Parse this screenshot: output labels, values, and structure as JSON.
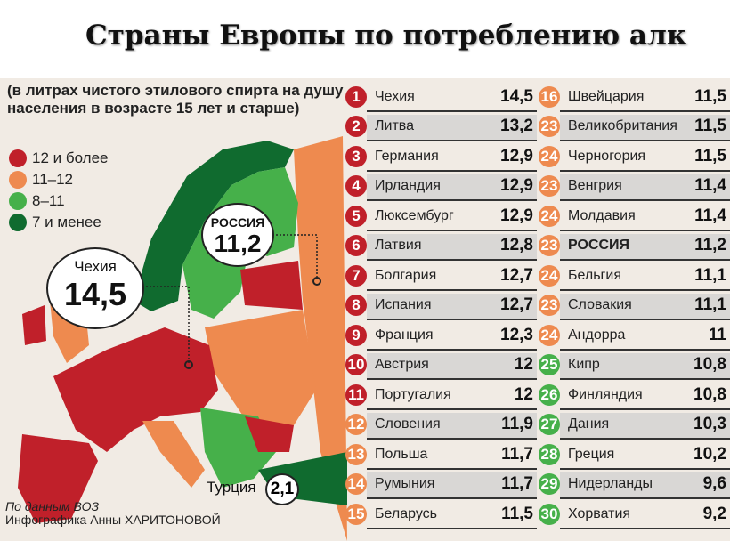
{
  "title": "Страны Европы по потреблению алк",
  "subtitle": "(в литрах чистого этилового спирта на душу населения в возрасте 15 лет и старше)",
  "legend": [
    {
      "label": "12 и более",
      "color": "#c0202a"
    },
    {
      "label": "11–12",
      "color": "#ee8a4f"
    },
    {
      "label": "8–11",
      "color": "#46b04a"
    },
    {
      "label": "7 и менее",
      "color": "#106b2f"
    }
  ],
  "callouts": {
    "czech": {
      "name": "Чехия",
      "value": "14,5"
    },
    "russia": {
      "name": "РОССИЯ",
      "value": "11,2"
    },
    "turkey": {
      "name": "Турция",
      "value": "2,1"
    }
  },
  "source": {
    "line1": "По данным ВОЗ",
    "line2": "Инфографика Анны ХАРИТОНОВОЙ"
  },
  "ranking": [
    {
      "rank": "1",
      "country": "Чехия",
      "value": "14,5",
      "color": "#c0202a"
    },
    {
      "rank": "2",
      "country": "Литва",
      "value": "13,2",
      "color": "#c0202a"
    },
    {
      "rank": "3",
      "country": "Германия",
      "value": "12,9",
      "color": "#c0202a"
    },
    {
      "rank": "4",
      "country": "Ирландия",
      "value": "12,9",
      "color": "#c0202a"
    },
    {
      "rank": "5",
      "country": "Люксембург",
      "value": "12,9",
      "color": "#c0202a"
    },
    {
      "rank": "6",
      "country": "Латвия",
      "value": "12,8",
      "color": "#c0202a"
    },
    {
      "rank": "7",
      "country": "Болгария",
      "value": "12,7",
      "color": "#c0202a"
    },
    {
      "rank": "8",
      "country": "Испания",
      "value": "12,7",
      "color": "#c0202a"
    },
    {
      "rank": "9",
      "country": "Франция",
      "value": "12,3",
      "color": "#c0202a"
    },
    {
      "rank": "10",
      "country": "Австрия",
      "value": "12",
      "color": "#c0202a"
    },
    {
      "rank": "11",
      "country": "Португалия",
      "value": "12",
      "color": "#c0202a"
    },
    {
      "rank": "12",
      "country": "Словения",
      "value": "11,9",
      "color": "#ee8a4f"
    },
    {
      "rank": "13",
      "country": "Польша",
      "value": "11,7",
      "color": "#ee8a4f"
    },
    {
      "rank": "14",
      "country": "Румыния",
      "value": "11,7",
      "color": "#ee8a4f"
    },
    {
      "rank": "15",
      "country": "Беларусь",
      "value": "11,5",
      "color": "#ee8a4f"
    },
    {
      "rank": "16",
      "country": "Швейцария",
      "value": "11,5",
      "color": "#ee8a4f"
    },
    {
      "rank": "23",
      "country": "Великобритания",
      "value": "11,5",
      "color": "#ee8a4f"
    },
    {
      "rank": "24",
      "country": "Черногория",
      "value": "11,5",
      "color": "#ee8a4f"
    },
    {
      "rank": "23",
      "country": "Венгрия",
      "value": "11,4",
      "color": "#ee8a4f"
    },
    {
      "rank": "24",
      "country": "Молдавия",
      "value": "11,4",
      "color": "#ee8a4f"
    },
    {
      "rank": "23",
      "country": "РОССИЯ",
      "value": "11,2",
      "color": "#ee8a4f",
      "bold": true
    },
    {
      "rank": "24",
      "country": "Бельгия",
      "value": "11,1",
      "color": "#ee8a4f"
    },
    {
      "rank": "23",
      "country": "Словакия",
      "value": "11,1",
      "color": "#ee8a4f"
    },
    {
      "rank": "24",
      "country": "Андорра",
      "value": "11",
      "color": "#ee8a4f"
    },
    {
      "rank": "25",
      "country": "Кипр",
      "value": "10,8",
      "color": "#46b04a"
    },
    {
      "rank": "26",
      "country": "Финляндия",
      "value": "10,8",
      "color": "#46b04a"
    },
    {
      "rank": "27",
      "country": "Дания",
      "value": "10,3",
      "color": "#46b04a"
    },
    {
      "rank": "28",
      "country": "Греция",
      "value": "10,2",
      "color": "#46b04a"
    },
    {
      "rank": "29",
      "country": "Нидерланды",
      "value": "9,6",
      "color": "#46b04a"
    },
    {
      "rank": "30",
      "country": "Хорватия",
      "value": "9,2",
      "color": "#46b04a"
    }
  ]
}
